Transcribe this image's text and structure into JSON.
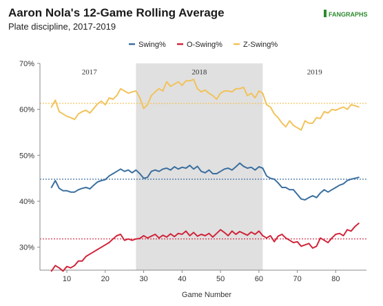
{
  "header": {
    "title": "Aaron Nola's 12-Game Rolling Average",
    "subtitle": "Plate discipline, 2017-2019",
    "logo": {
      "prefix": "▌",
      "fan": "FAN",
      "graphs": "GRAPHS",
      "fan_color": "#2e8b2e",
      "graphs_color": "#2e8b2e"
    }
  },
  "colors": {
    "swing": "#3a6e9e",
    "oswing": "#d0243a",
    "zswing": "#f2c25a",
    "shade": "#e0e0e0",
    "axis": "#888888"
  },
  "chart_data": {
    "type": "line",
    "title": "Aaron Nola's 12-Game Rolling Average",
    "subtitle": "Plate discipline, 2017-2019",
    "xlabel": "Game Number",
    "ylabel": "",
    "xlim": [
      3,
      88
    ],
    "ylim": [
      25,
      70
    ],
    "x_ticks": [
      10,
      20,
      30,
      40,
      50,
      60,
      70,
      80
    ],
    "y_ticks": [
      30,
      40,
      50,
      60,
      70
    ],
    "y_tick_labels": [
      "30%",
      "40%",
      "50%",
      "60%",
      "70%"
    ],
    "legend_position": "top",
    "grid": false,
    "eras": [
      {
        "label": "2017",
        "start": 3,
        "end": 28,
        "shaded": false
      },
      {
        "label": "2018",
        "start": 28,
        "end": 61,
        "shaded": true
      },
      {
        "label": "2019",
        "start": 61,
        "end": 88,
        "shaded": false
      }
    ],
    "reference_lines": [
      {
        "series": "Swing%",
        "value": 44.8
      },
      {
        "series": "O-Swing%",
        "value": 31.8
      },
      {
        "series": "Z-Swing%",
        "value": 61.3
      }
    ],
    "series": [
      {
        "name": "Swing%",
        "color": "#3a6e9e",
        "x": [
          6,
          7,
          8,
          9,
          10,
          11,
          12,
          13,
          14,
          15,
          16,
          17,
          18,
          19,
          20,
          21,
          22,
          23,
          24,
          25,
          26,
          27,
          28,
          29,
          30,
          31,
          32,
          33,
          34,
          35,
          36,
          37,
          38,
          39,
          40,
          41,
          42,
          43,
          44,
          45,
          46,
          47,
          48,
          49,
          50,
          51,
          52,
          53,
          54,
          55,
          56,
          57,
          58,
          59,
          60,
          61,
          62,
          63,
          64,
          65,
          66,
          67,
          68,
          69,
          70,
          71,
          72,
          73,
          74,
          75,
          76,
          77,
          78,
          79,
          80,
          81,
          82,
          83,
          84,
          85,
          86
        ],
        "values": [
          43.0,
          44.5,
          42.8,
          42.3,
          42.3,
          42.0,
          42.0,
          42.5,
          42.8,
          43.0,
          42.7,
          43.5,
          44.2,
          44.5,
          44.7,
          45.5,
          46.0,
          46.5,
          47.0,
          46.5,
          46.8,
          46.2,
          46.8,
          46.0,
          45.0,
          45.2,
          46.5,
          46.8,
          46.5,
          47.0,
          47.2,
          46.8,
          47.5,
          47.0,
          47.4,
          47.2,
          47.8,
          47.0,
          47.6,
          46.5,
          46.2,
          46.8,
          46.0,
          46.0,
          46.5,
          47.0,
          47.2,
          46.8,
          47.5,
          48.3,
          47.6,
          47.2,
          47.4,
          46.8,
          47.5,
          47.2,
          45.5,
          45.0,
          44.8,
          44.0,
          43.0,
          43.0,
          42.5,
          42.5,
          41.5,
          40.5,
          40.3,
          40.8,
          41.2,
          40.8,
          41.8,
          42.5,
          42.0,
          42.5,
          43.0,
          43.5,
          43.8,
          44.5,
          44.8,
          45.0,
          45.2
        ]
      },
      {
        "name": "O-Swing%",
        "color": "#d0243a",
        "x": [
          6,
          7,
          8,
          9,
          10,
          11,
          12,
          13,
          14,
          15,
          16,
          17,
          18,
          19,
          20,
          21,
          22,
          23,
          24,
          25,
          26,
          27,
          28,
          29,
          30,
          31,
          32,
          33,
          34,
          35,
          36,
          37,
          38,
          39,
          40,
          41,
          42,
          43,
          44,
          45,
          46,
          47,
          48,
          49,
          50,
          51,
          52,
          53,
          54,
          55,
          56,
          57,
          58,
          59,
          60,
          61,
          62,
          63,
          64,
          65,
          66,
          67,
          68,
          69,
          70,
          71,
          72,
          73,
          74,
          75,
          76,
          77,
          78,
          79,
          80,
          81,
          82,
          83,
          84,
          85,
          86
        ],
        "values": [
          24.8,
          26.0,
          25.5,
          24.8,
          25.8,
          25.5,
          26.0,
          27.0,
          27.0,
          28.0,
          28.5,
          29.0,
          29.5,
          30.0,
          30.5,
          31.0,
          31.8,
          32.5,
          32.8,
          31.5,
          31.8,
          31.5,
          31.8,
          31.9,
          32.5,
          32.0,
          32.4,
          32.8,
          32.0,
          32.6,
          32.2,
          32.9,
          32.3,
          33.0,
          32.8,
          33.5,
          32.5,
          33.2,
          32.4,
          32.8,
          32.5,
          33.0,
          32.2,
          33.0,
          33.8,
          33.2,
          32.5,
          33.5,
          32.8,
          33.4,
          33.0,
          32.6,
          33.3,
          32.8,
          33.5,
          32.5,
          32.0,
          32.5,
          31.2,
          32.4,
          32.8,
          32.0,
          31.5,
          31.0,
          31.2,
          30.2,
          30.5,
          30.8,
          29.8,
          30.2,
          32.0,
          31.5,
          31.0,
          32.0,
          32.8,
          33.0,
          32.5,
          33.8,
          33.5,
          34.5,
          35.2
        ]
      },
      {
        "name": "Z-Swing%",
        "color": "#f2c25a",
        "x": [
          6,
          7,
          8,
          9,
          10,
          11,
          12,
          13,
          14,
          15,
          16,
          17,
          18,
          19,
          20,
          21,
          22,
          23,
          24,
          25,
          26,
          27,
          28,
          29,
          30,
          31,
          32,
          33,
          34,
          35,
          36,
          37,
          38,
          39,
          40,
          41,
          42,
          43,
          44,
          45,
          46,
          47,
          48,
          49,
          50,
          51,
          52,
          53,
          54,
          55,
          56,
          57,
          58,
          59,
          60,
          61,
          62,
          63,
          64,
          65,
          66,
          67,
          68,
          69,
          70,
          71,
          72,
          73,
          74,
          75,
          76,
          77,
          78,
          79,
          80,
          81,
          82,
          83,
          84,
          85,
          86
        ],
        "values": [
          60.5,
          62.0,
          59.5,
          59.0,
          58.5,
          58.2,
          57.8,
          59.0,
          59.5,
          59.8,
          59.2,
          60.2,
          61.2,
          61.8,
          61.0,
          62.5,
          62.2,
          63.0,
          64.5,
          64.0,
          63.5,
          63.8,
          64.0,
          62.5,
          60.2,
          61.0,
          63.0,
          63.8,
          64.5,
          64.0,
          66.0,
          65.0,
          65.5,
          66.0,
          65.2,
          66.2,
          66.2,
          66.5,
          64.5,
          63.8,
          64.2,
          63.5,
          63.0,
          62.2,
          63.5,
          64.0,
          64.0,
          63.8,
          64.5,
          64.5,
          64.8,
          63.0,
          63.5,
          62.5,
          64.0,
          63.5,
          61.0,
          60.5,
          59.0,
          58.2,
          57.0,
          56.2,
          57.5,
          56.5,
          56.0,
          55.5,
          57.5,
          57.0,
          57.0,
          58.2,
          58.0,
          59.5,
          59.2,
          60.0,
          59.8,
          60.2,
          60.5,
          60.0,
          61.0,
          60.8,
          60.5
        ]
      }
    ]
  }
}
